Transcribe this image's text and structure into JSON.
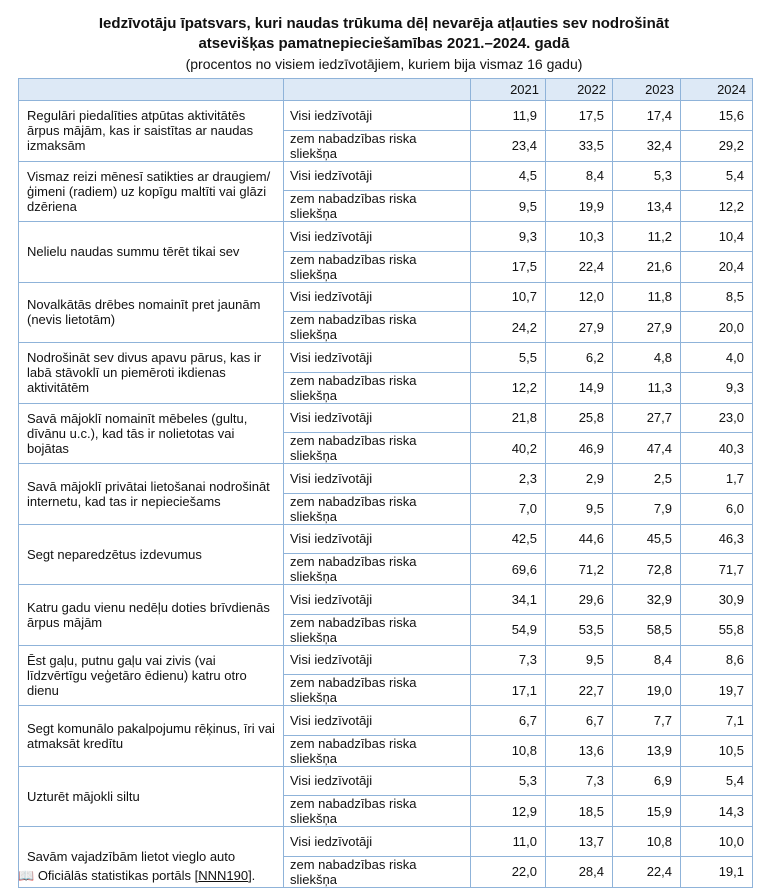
{
  "header": {
    "title": [
      "Iedzīvotāju īpatsvars, kuri naudas trūkuma dēļ nevarēja atļauties sev nodrošināt",
      "atsevišķas pamatnepieciešamības 2021.–2024. gadā"
    ],
    "subtitle": "(procentos no visiem iedzīvotājiem, kuriem bija vismaz 16 gadu)"
  },
  "table": {
    "columns": [
      "2021",
      "2022",
      "2023",
      "2024"
    ],
    "rows": [
      {
        "label": "Regulāri piedalīties atpūtas aktivitātēs ārpus mājām, kas ir saistītas ar naudas izmaksām",
        "sub": [
          {
            "group": "Visi iedzīvotāji",
            "values": [
              "11,9",
              "17,5",
              "17,4",
              "15,6"
            ]
          },
          {
            "group": "zem nabadzības riska sliekšņa",
            "values": [
              "23,4",
              "33,5",
              "32,4",
              "29,2"
            ]
          }
        ]
      },
      {
        "label": "Vismaz reizi mēnesī satikties ar draugiem/ģimeni (radiem) uz kopīgu maltīti vai glāzi dzēriena",
        "sub": [
          {
            "group": "Visi iedzīvotāji",
            "values": [
              "4,5",
              "8,4",
              "5,3",
              "5,4"
            ]
          },
          {
            "group": "zem nabadzības riska sliekšņa",
            "values": [
              "9,5",
              "19,9",
              "13,4",
              "12,2"
            ]
          }
        ]
      },
      {
        "label": "Nelielu naudas summu tērēt tikai sev",
        "sub": [
          {
            "group": "Visi iedzīvotāji",
            "values": [
              "9,3",
              "10,3",
              "11,2",
              "10,4"
            ]
          },
          {
            "group": "zem nabadzības riska sliekšņa",
            "values": [
              "17,5",
              "22,4",
              "21,6",
              "20,4"
            ]
          }
        ]
      },
      {
        "label": "Novalkātās drēbes nomainīt pret jaunām (nevis lietotām)",
        "sub": [
          {
            "group": "Visi iedzīvotāji",
            "values": [
              "10,7",
              "12,0",
              "11,8",
              "8,5"
            ]
          },
          {
            "group": "zem nabadzības riska sliekšņa",
            "values": [
              "24,2",
              "27,9",
              "27,9",
              "20,0"
            ]
          }
        ]
      },
      {
        "label": "Nodrošināt sev divus apavu pārus, kas ir labā stāvoklī un piemēroti ikdienas aktivitātēm",
        "sub": [
          {
            "group": "Visi iedzīvotāji",
            "values": [
              "5,5",
              "6,2",
              "4,8",
              "4,0"
            ]
          },
          {
            "group": "zem nabadzības riska sliekšņa",
            "values": [
              "12,2",
              "14,9",
              "11,3",
              "9,3"
            ]
          }
        ]
      },
      {
        "label": "Savā mājoklī nomainīt mēbeles (gultu, dīvānu u.c.), kad tās ir nolietotas vai bojātas",
        "sub": [
          {
            "group": "Visi iedzīvotāji",
            "values": [
              "21,8",
              "25,8",
              "27,7",
              "23,0"
            ]
          },
          {
            "group": "zem nabadzības riska sliekšņa",
            "values": [
              "40,2",
              "46,9",
              "47,4",
              "40,3"
            ]
          }
        ]
      },
      {
        "label": "Savā mājoklī privātai lietošanai nodrošināt internetu, kad tas ir nepieciešams",
        "sub": [
          {
            "group": "Visi iedzīvotāji",
            "values": [
              "2,3",
              "2,9",
              "2,5",
              "1,7"
            ]
          },
          {
            "group": "zem nabadzības riska sliekšņa",
            "values": [
              "7,0",
              "9,5",
              "7,9",
              "6,0"
            ]
          }
        ]
      },
      {
        "label": "Segt neparedzētus izdevumus",
        "sub": [
          {
            "group": "Visi iedzīvotāji",
            "values": [
              "42,5",
              "44,6",
              "45,5",
              "46,3"
            ]
          },
          {
            "group": "zem nabadzības riska sliekšņa",
            "values": [
              "69,6",
              "71,2",
              "72,8",
              "71,7"
            ]
          }
        ]
      },
      {
        "label": "Katru gadu vienu nedēļu doties brīvdienās ārpus mājām",
        "sub": [
          {
            "group": "Visi iedzīvotāji",
            "values": [
              "34,1",
              "29,6",
              "32,9",
              "30,9"
            ]
          },
          {
            "group": "zem nabadzības riska sliekšņa",
            "values": [
              "54,9",
              "53,5",
              "58,5",
              "55,8"
            ]
          }
        ]
      },
      {
        "label": "Ēst gaļu, putnu gaļu vai zivis (vai līdzvērtīgu veģetāro ēdienu) katru otro dienu",
        "sub": [
          {
            "group": "Visi iedzīvotāji",
            "values": [
              "7,3",
              "9,5",
              "8,4",
              "8,6"
            ]
          },
          {
            "group": "zem nabadzības riska sliekšņa",
            "values": [
              "17,1",
              "22,7",
              "19,0",
              "19,7"
            ]
          }
        ]
      },
      {
        "label": "Segt komunālo pakalpojumu rēķinus, īri vai atmaksāt kredītu",
        "sub": [
          {
            "group": "Visi iedzīvotāji",
            "values": [
              "6,7",
              "6,7",
              "7,7",
              "7,1"
            ]
          },
          {
            "group": "zem nabadzības riska sliekšņa",
            "values": [
              "10,8",
              "13,6",
              "13,9",
              "10,5"
            ]
          }
        ]
      },
      {
        "label": "Uzturēt mājokli siltu",
        "sub": [
          {
            "group": "Visi iedzīvotāji",
            "values": [
              "5,3",
              "7,3",
              "6,9",
              "5,4"
            ]
          },
          {
            "group": "zem nabadzības riska sliekšņa",
            "values": [
              "12,9",
              "18,5",
              "15,9",
              "14,3"
            ]
          }
        ]
      },
      {
        "label": "Savām vajadzībām lietot vieglo auto",
        "sub": [
          {
            "group": "Visi iedzīvotāji",
            "values": [
              "11,0",
              "13,7",
              "10,8",
              "10,0"
            ]
          },
          {
            "group": "zem nabadzības riska sliekšņa",
            "values": [
              "22,0",
              "28,4",
              "22,4",
              "19,1"
            ]
          }
        ]
      }
    ]
  },
  "footer": {
    "prefix": "Oficiālās statistikas portāls [",
    "link": "NNN190",
    "suffix": "]."
  }
}
